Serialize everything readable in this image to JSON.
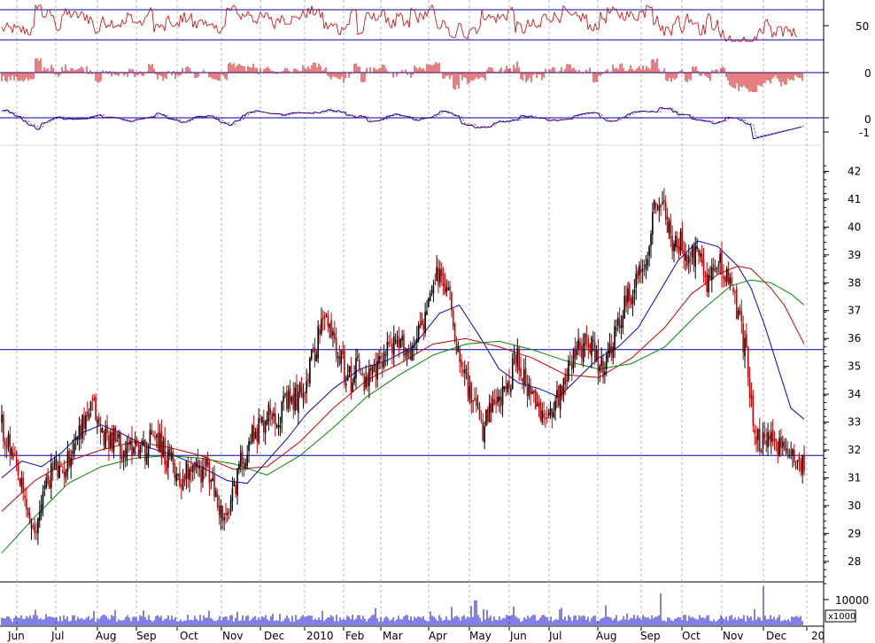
{
  "chart_data": {
    "type": "candlestick",
    "x_tick_labels": [
      "Jun",
      "Jul",
      "Aug",
      "Sep",
      "Oct",
      "Nov",
      "Dec",
      "2010",
      "Feb",
      "Mar",
      "Apr",
      "May",
      "Jun",
      "Jul",
      "Aug",
      "Sep",
      "Oct",
      "Nov",
      "Dec",
      "20"
    ],
    "price_panel": {
      "ylim": [
        27.2,
        42.3
      ],
      "y_ticks": [
        28,
        29,
        30,
        31,
        32,
        33,
        34,
        35,
        36,
        37,
        38,
        39,
        40,
        41,
        42
      ],
      "horizontal_lines": [
        35.6,
        31.8
      ],
      "close_path": [
        [
          0,
          32.9
        ],
        [
          2,
          31.4
        ],
        [
          4,
          29.7
        ],
        [
          5,
          28.7
        ],
        [
          6,
          30.3
        ],
        [
          8,
          31.5
        ],
        [
          9,
          31.0
        ],
        [
          11,
          32.3
        ],
        [
          13,
          33.3
        ],
        [
          14,
          33.5
        ],
        [
          15,
          32.6
        ],
        [
          17,
          32.4
        ],
        [
          19,
          31.9
        ],
        [
          20,
          32.3
        ],
        [
          22,
          32.0
        ],
        [
          23,
          32.8
        ],
        [
          24,
          32.3
        ],
        [
          25,
          31.6
        ],
        [
          26,
          31.5
        ],
        [
          27,
          30.9
        ],
        [
          29,
          31.6
        ],
        [
          30,
          31.2
        ],
        [
          31,
          31.4
        ],
        [
          32,
          30.7
        ],
        [
          33,
          29.9
        ],
        [
          34,
          29.3
        ],
        [
          35,
          30.3
        ],
        [
          36,
          31.4
        ],
        [
          37,
          31.9
        ],
        [
          38,
          32.6
        ],
        [
          39,
          32.8
        ],
        [
          40,
          33.1
        ],
        [
          41,
          33.5
        ],
        [
          42,
          33.2
        ],
        [
          43,
          33.6
        ],
        [
          45,
          33.9
        ],
        [
          46,
          34.4
        ],
        [
          47,
          35.2
        ],
        [
          48,
          36.1
        ],
        [
          49,
          36.7
        ],
        [
          50,
          36.2
        ],
        [
          51,
          35.7
        ],
        [
          52,
          34.8
        ],
        [
          53,
          34.5
        ],
        [
          54,
          35.4
        ],
        [
          55,
          34.3
        ],
        [
          57,
          34.9
        ],
        [
          58,
          35.5
        ],
        [
          59,
          35.9
        ],
        [
          60,
          35.6
        ],
        [
          61,
          35.8
        ],
        [
          62,
          35.4
        ],
        [
          63,
          36.3
        ],
        [
          64,
          36.6
        ],
        [
          65,
          37.3
        ],
        [
          66,
          38.3
        ],
        [
          67,
          38.0
        ],
        [
          68,
          37.6
        ],
        [
          69,
          35.8
        ],
        [
          70,
          35.2
        ],
        [
          71,
          34.0
        ],
        [
          72,
          33.4
        ],
        [
          73,
          32.7
        ],
        [
          74,
          33.3
        ],
        [
          75,
          33.6
        ],
        [
          76,
          33.9
        ],
        [
          77,
          34.4
        ],
        [
          78,
          35.4
        ],
        [
          79,
          34.8
        ],
        [
          80,
          34.0
        ],
        [
          81,
          33.6
        ],
        [
          82,
          33.0
        ],
        [
          83,
          33.4
        ],
        [
          85,
          34.2
        ],
        [
          86,
          35.1
        ],
        [
          87,
          35.4
        ],
        [
          88,
          35.7
        ],
        [
          89,
          36.1
        ],
        [
          90,
          35.3
        ],
        [
          91,
          34.9
        ],
        [
          92,
          35.2
        ],
        [
          93,
          36.0
        ],
        [
          94,
          36.8
        ],
        [
          95,
          37.4
        ],
        [
          96,
          37.9
        ],
        [
          97,
          38.4
        ],
        [
          98,
          39.2
        ],
        [
          99,
          40.9
        ],
        [
          100,
          41.0
        ],
        [
          101,
          40.1
        ],
        [
          102,
          39.3
        ],
        [
          103,
          39.4
        ],
        [
          104,
          38.6
        ],
        [
          105,
          39.0
        ],
        [
          106,
          38.9
        ],
        [
          107,
          38.1
        ],
        [
          108,
          38.3
        ],
        [
          109,
          38.8
        ],
        [
          110,
          38.3
        ],
        [
          111,
          37.6
        ],
        [
          112,
          36.5
        ],
        [
          113,
          35.4
        ],
        [
          114,
          33.0
        ],
        [
          115,
          32.3
        ],
        [
          116,
          32.1
        ],
        [
          117,
          32.6
        ],
        [
          118,
          32.0
        ],
        [
          119,
          31.8
        ],
        [
          120,
          31.9
        ],
        [
          121,
          31.7
        ]
      ],
      "moving_averages": [
        {
          "color": "#0000cc",
          "path": [
            [
              0,
              31.0
            ],
            [
              3,
              31.6
            ],
            [
              6,
              31.4
            ],
            [
              9,
              31.9
            ],
            [
              12,
              32.6
            ],
            [
              15,
              32.9
            ],
            [
              18,
              32.6
            ],
            [
              22,
              32.1
            ],
            [
              26,
              31.8
            ],
            [
              30,
              31.4
            ],
            [
              34,
              30.9
            ],
            [
              37,
              30.8
            ],
            [
              40,
              31.6
            ],
            [
              43,
              32.4
            ],
            [
              46,
              33.3
            ],
            [
              50,
              34.2
            ],
            [
              54,
              34.9
            ],
            [
              58,
              35.2
            ],
            [
              62,
              35.7
            ],
            [
              66,
              36.9
            ],
            [
              69,
              37.2
            ],
            [
              72,
              36.1
            ],
            [
              75,
              34.9
            ],
            [
              78,
              34.4
            ],
            [
              81,
              34.2
            ],
            [
              84,
              33.9
            ],
            [
              87,
              34.6
            ],
            [
              90,
              35.3
            ],
            [
              93,
              35.7
            ],
            [
              96,
              36.4
            ],
            [
              99,
              37.6
            ],
            [
              102,
              38.8
            ],
            [
              105,
              39.5
            ],
            [
              108,
              39.3
            ],
            [
              111,
              38.6
            ],
            [
              113,
              37.8
            ],
            [
              115,
              36.5
            ],
            [
              117,
              35.0
            ],
            [
              119,
              33.5
            ],
            [
              121,
              33.1
            ]
          ]
        },
        {
          "color": "#cc0000",
          "path": [
            [
              0,
              29.8
            ],
            [
              5,
              30.9
            ],
            [
              10,
              31.6
            ],
            [
              15,
              32.0
            ],
            [
              20,
              32.3
            ],
            [
              25,
              32.1
            ],
            [
              30,
              31.8
            ],
            [
              35,
              31.3
            ],
            [
              40,
              31.4
            ],
            [
              45,
              32.3
            ],
            [
              50,
              33.5
            ],
            [
              55,
              34.5
            ],
            [
              60,
              35.1
            ],
            [
              65,
              35.8
            ],
            [
              70,
              36.0
            ],
            [
              75,
              35.7
            ],
            [
              80,
              35.3
            ],
            [
              85,
              34.7
            ],
            [
              90,
              34.6
            ],
            [
              95,
              35.3
            ],
            [
              100,
              36.4
            ],
            [
              104,
              37.6
            ],
            [
              108,
              38.3
            ],
            [
              111,
              38.6
            ],
            [
              113,
              38.5
            ],
            [
              116,
              37.8
            ],
            [
              118,
              37.2
            ],
            [
              121,
              35.8
            ]
          ]
        },
        {
          "color": "#008800",
          "path": [
            [
              0,
              28.3
            ],
            [
              5,
              29.6
            ],
            [
              10,
              30.8
            ],
            [
              15,
              31.4
            ],
            [
              20,
              31.7
            ],
            [
              25,
              31.8
            ],
            [
              30,
              31.7
            ],
            [
              35,
              31.5
            ],
            [
              40,
              31.1
            ],
            [
              45,
              31.8
            ],
            [
              50,
              32.8
            ],
            [
              55,
              33.9
            ],
            [
              60,
              34.7
            ],
            [
              65,
              35.4
            ],
            [
              70,
              35.8
            ],
            [
              75,
              35.9
            ],
            [
              80,
              35.6
            ],
            [
              85,
              35.2
            ],
            [
              90,
              34.9
            ],
            [
              95,
              35.1
            ],
            [
              100,
              35.7
            ],
            [
              105,
              36.9
            ],
            [
              110,
              37.9
            ],
            [
              113,
              38.1
            ],
            [
              116,
              38.0
            ],
            [
              119,
              37.6
            ],
            [
              121,
              37.2
            ]
          ]
        }
      ]
    },
    "rsi_panel": {
      "y_tick_label": "50",
      "upper_line": 70,
      "lower_line": 30
    },
    "histogram_panel": {
      "y_tick_label": "0"
    },
    "oscillator_panel": {
      "y_tick_labels": [
        "0",
        "-1"
      ]
    },
    "volume_panel": {
      "y_tick_label": "10000",
      "unit_label": "x1000"
    }
  }
}
